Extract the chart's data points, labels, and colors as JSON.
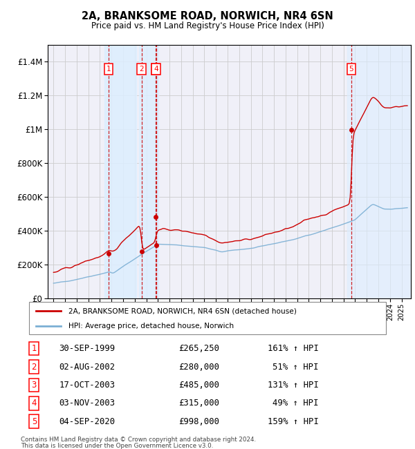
{
  "title": "2A, BRANKSOME ROAD, NORWICH, NR4 6SN",
  "subtitle": "Price paid vs. HM Land Registry's House Price Index (HPI)",
  "legend_line1": "2A, BRANKSOME ROAD, NORWICH, NR4 6SN (detached house)",
  "legend_line2": "HPI: Average price, detached house, Norwich",
  "footer1": "Contains HM Land Registry data © Crown copyright and database right 2024.",
  "footer2": "This data is licensed under the Open Government Licence v3.0.",
  "transactions": [
    {
      "id": 1,
      "date": "30-SEP-1999",
      "year": 1999.75,
      "price": 265250,
      "pct": "161%",
      "dir": "↑"
    },
    {
      "id": 2,
      "date": "02-AUG-2002",
      "year": 2002.58,
      "price": 280000,
      "pct": "51%",
      "dir": "↑"
    },
    {
      "id": 3,
      "date": "17-OCT-2003",
      "year": 2003.79,
      "price": 485000,
      "pct": "131%",
      "dir": "↑"
    },
    {
      "id": 4,
      "date": "03-NOV-2003",
      "year": 2003.84,
      "price": 315000,
      "pct": "49%",
      "dir": "↑"
    },
    {
      "id": 5,
      "date": "04-SEP-2020",
      "year": 2020.67,
      "price": 998000,
      "pct": "159%",
      "dir": "↑"
    }
  ],
  "property_color": "#cc0000",
  "hpi_color": "#7bafd4",
  "vline_color": "#cc0000",
  "shade_color": "#ddeeff",
  "ylim": [
    0,
    1500000
  ],
  "yticks": [
    0,
    200000,
    400000,
    600000,
    800000,
    1000000,
    1200000,
    1400000
  ],
  "xlim_start": 1994.5,
  "xlim_end": 2025.8,
  "grid_color": "#cccccc",
  "background_color": "#f0f0f8"
}
